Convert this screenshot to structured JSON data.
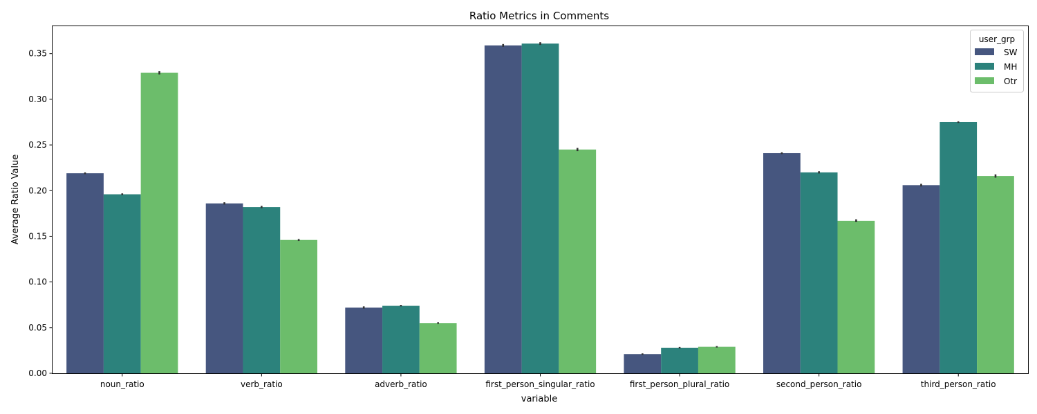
{
  "chart_data": {
    "type": "bar",
    "title": "Ratio Metrics in Comments",
    "xlabel": "variable",
    "ylabel": "Average Ratio Value",
    "ylim": [
      0,
      0.38
    ],
    "yticks": [
      "0.00",
      "0.05",
      "0.10",
      "0.15",
      "0.20",
      "0.25",
      "0.30",
      "0.35"
    ],
    "categories": [
      "noun_ratio",
      "verb_ratio",
      "adverb_ratio",
      "first_person_singular_ratio",
      "first_person_plural_ratio",
      "second_person_ratio",
      "third_person_ratio"
    ],
    "legend": {
      "title": "user_grp",
      "position": "top-right"
    },
    "grid": false,
    "series": [
      {
        "name": "SW",
        "color": "#46567f",
        "values": [
          0.219,
          0.186,
          0.072,
          0.359,
          0.021,
          0.241,
          0.206
        ],
        "errors": [
          0.001,
          0.0005,
          0.0005,
          0.0015,
          0.0008,
          0.001,
          0.0007
        ]
      },
      {
        "name": "MH",
        "color": "#2c827c",
        "values": [
          0.196,
          0.182,
          0.074,
          0.361,
          0.028,
          0.22,
          0.275
        ],
        "errors": [
          0.001,
          0.0005,
          0.0008,
          0.0015,
          0.0008,
          0.0012,
          0.0009
        ]
      },
      {
        "name": "Otr",
        "color": "#6cbd6b",
        "values": [
          0.329,
          0.146,
          0.055,
          0.245,
          0.029,
          0.167,
          0.216
        ],
        "errors": [
          0.0018,
          0.001,
          0.0008,
          0.0018,
          0.0008,
          0.0015,
          0.0018
        ]
      }
    ]
  }
}
